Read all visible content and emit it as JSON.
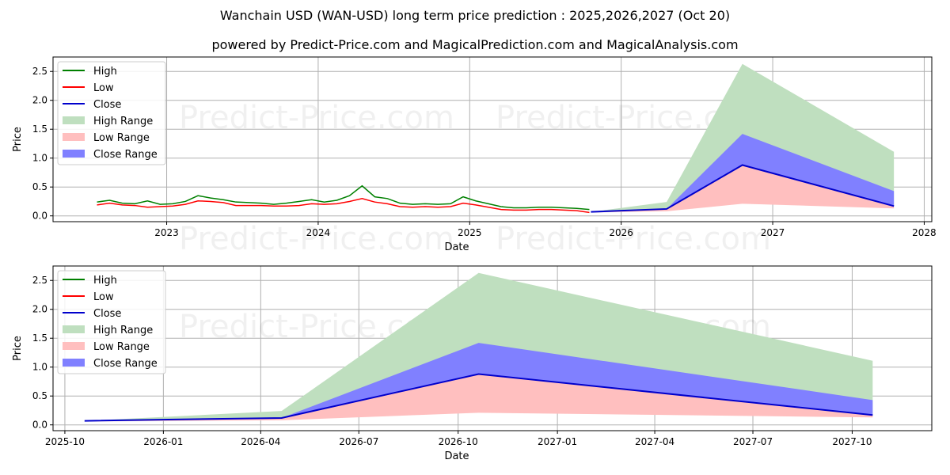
{
  "title": "Wanchain USD (WAN-USD) long term price prediction : 2025,2026,2027 (Oct 20)",
  "subtitle": "powered by Predict-Price.com and MagicalPrediction.com and MagicalAnalysis.com",
  "watermark": "Predict-Price.com",
  "colors": {
    "high": "#008000",
    "low": "#ff0000",
    "close": "#0000cc",
    "high_range": "#bfdfbf",
    "low_range": "#ffbfbf",
    "close_range": "#8080ff"
  },
  "legend": [
    "High",
    "Low",
    "Close",
    "High Range",
    "Low Range",
    "Close Range"
  ],
  "chart_data": [
    {
      "type": "line",
      "xlabel": "Date",
      "ylabel": "Price",
      "xlim": [
        2022.25,
        2028.05
      ],
      "ylim": [
        -0.1,
        2.75
      ],
      "xticks": [
        {
          "v": 2023,
          "label": "2023"
        },
        {
          "v": 2024,
          "label": "2024"
        },
        {
          "v": 2025,
          "label": "2025"
        },
        {
          "v": 2026,
          "label": "2026"
        },
        {
          "v": 2027,
          "label": "2027"
        },
        {
          "v": 2028,
          "label": "2028"
        }
      ],
      "yticks": [
        {
          "v": 0,
          "label": "0.0"
        },
        {
          "v": 0.5,
          "label": "0.5"
        },
        {
          "v": 1,
          "label": "1.0"
        },
        {
          "v": 1.5,
          "label": "1.5"
        },
        {
          "v": 2,
          "label": "2.0"
        },
        {
          "v": 2.5,
          "label": "2.5"
        }
      ],
      "grid": true,
      "legend_position": "top-left",
      "history": {
        "start": "2022-07",
        "step": "month",
        "high": [
          0.24,
          0.27,
          0.22,
          0.21,
          0.26,
          0.2,
          0.21,
          0.25,
          0.35,
          0.31,
          0.28,
          0.24,
          0.23,
          0.22,
          0.2,
          0.22,
          0.25,
          0.28,
          0.24,
          0.27,
          0.35,
          0.52,
          0.33,
          0.3,
          0.22,
          0.2,
          0.21,
          0.2,
          0.21,
          0.33,
          0.26,
          0.21,
          0.16,
          0.14,
          0.14,
          0.15,
          0.15,
          0.14,
          0.13,
          0.11
        ],
        "low": [
          0.19,
          0.22,
          0.19,
          0.18,
          0.15,
          0.16,
          0.17,
          0.2,
          0.26,
          0.25,
          0.23,
          0.18,
          0.18,
          0.18,
          0.17,
          0.17,
          0.18,
          0.21,
          0.2,
          0.21,
          0.25,
          0.3,
          0.24,
          0.21,
          0.16,
          0.15,
          0.16,
          0.15,
          0.16,
          0.22,
          0.19,
          0.15,
          0.11,
          0.1,
          0.1,
          0.11,
          0.11,
          0.1,
          0.09,
          0.06
        ]
      }
    },
    {
      "type": "area",
      "xlabel": "Date",
      "ylabel": "Price",
      "xlim": [
        2025.72,
        2027.95
      ],
      "ylim": [
        -0.1,
        2.75
      ],
      "xticks": [
        {
          "v": 2025.75,
          "label": "2025-10"
        },
        {
          "v": 2026.0,
          "label": "2026-01"
        },
        {
          "v": 2026.247,
          "label": "2026-04"
        },
        {
          "v": 2026.496,
          "label": "2026-07"
        },
        {
          "v": 2026.748,
          "label": "2026-10"
        },
        {
          "v": 2027.0,
          "label": "2027-01"
        },
        {
          "v": 2027.247,
          "label": "2027-04"
        },
        {
          "v": 2027.496,
          "label": "2027-07"
        },
        {
          "v": 2027.748,
          "label": "2027-10"
        }
      ],
      "yticks": [
        {
          "v": 0,
          "label": "0.0"
        },
        {
          "v": 0.5,
          "label": "0.5"
        },
        {
          "v": 1,
          "label": "1.0"
        },
        {
          "v": 1.5,
          "label": "1.5"
        },
        {
          "v": 2,
          "label": "2.0"
        },
        {
          "v": 2.5,
          "label": "2.5"
        }
      ],
      "grid": true,
      "legend_position": "top-left"
    }
  ],
  "forecast": {
    "dates": [
      "2025-10-20",
      "2026-04-20",
      "2026-10-20",
      "2027-10-20"
    ],
    "x": [
      2025.8,
      2026.3,
      2026.8,
      2027.8
    ],
    "close": [
      0.07,
      0.12,
      0.88,
      0.17
    ],
    "high_range_top": [
      0.07,
      0.24,
      2.63,
      1.11
    ],
    "close_range_top": [
      0.07,
      0.12,
      1.42,
      0.43
    ],
    "low_range_bottom": [
      0.06,
      0.08,
      0.21,
      0.13
    ]
  }
}
